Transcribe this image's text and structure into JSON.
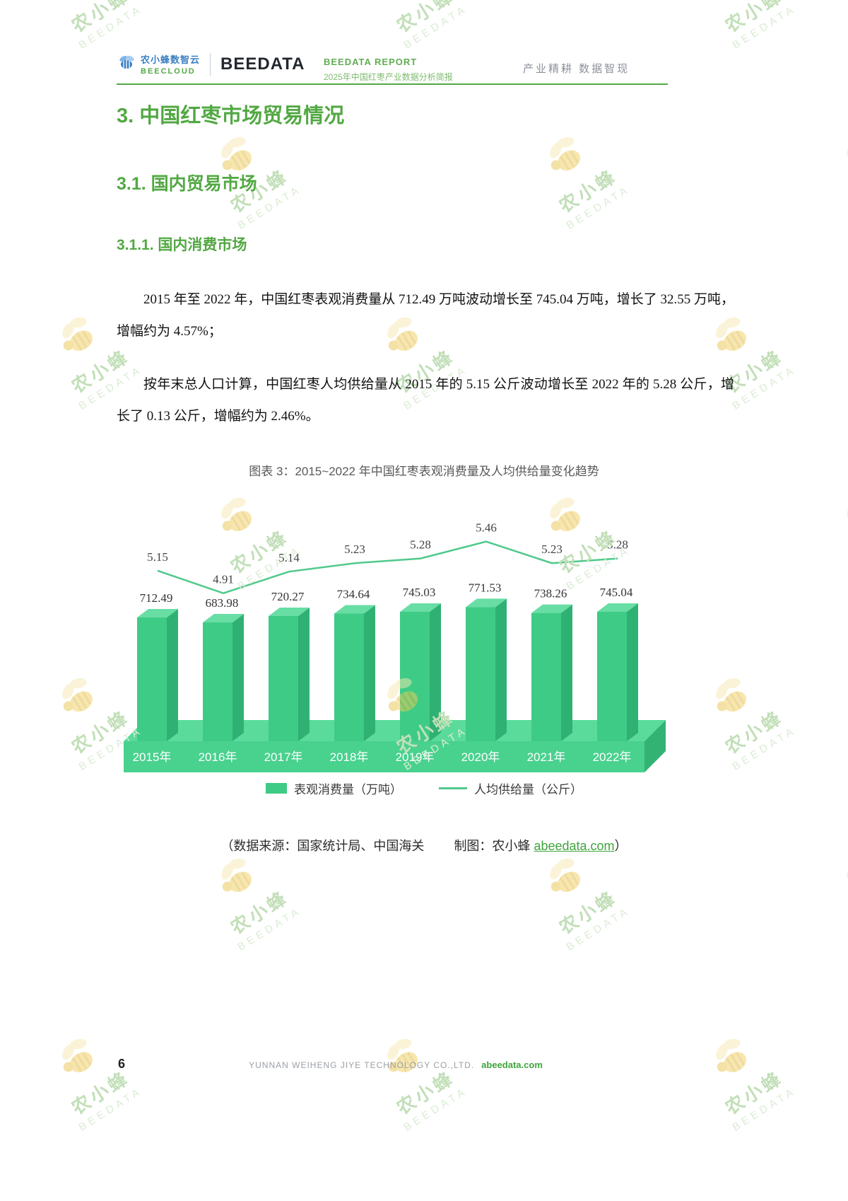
{
  "header": {
    "logo_cloud_cn": "农小蜂数智云",
    "logo_cloud_en": "BEECLOUD",
    "logo_beedata": "BEEDATA",
    "report_label": "BEEDATA REPORT",
    "report_subtitle": "2025年中国红枣产业数据分析简报",
    "slogan": "产业精耕 数据智现"
  },
  "headings": {
    "h1": "3. 中国红枣市场贸易情况",
    "h2": "3.1. 国内贸易市场",
    "h3": "3.1.1. 国内消费市场"
  },
  "paragraphs": {
    "p1": "2015 年至 2022 年，中国红枣表观消费量从 712.49 万吨波动增长至 745.04 万吨，增长了 32.55 万吨，增幅约为 4.57%；",
    "p2": "按年末总人口计算，中国红枣人均供给量从 2015 年的 5.15 公斤波动增长至 2022 年的 5.28 公斤，增长了 0.13 公斤，增幅约为 2.46%。"
  },
  "chart": {
    "caption": "图表 3：2015~2022 年中国红枣表观消费量及人均供给量变化趋势"
  },
  "chart_data": {
    "type": "bar",
    "title": "图表 3：2015~2022 年中国红枣表观消费量及人均供给量变化趋势",
    "categories": [
      "2015年",
      "2016年",
      "2017年",
      "2018年",
      "2019年",
      "2020年",
      "2021年",
      "2022年"
    ],
    "series": [
      {
        "name": "表观消费量（万吨）",
        "type": "bar",
        "values": [
          712.49,
          683.98,
          720.27,
          734.64,
          745.03,
          771.53,
          738.26,
          745.04
        ]
      },
      {
        "name": "人均供给量（公斤）",
        "type": "line",
        "values": [
          5.15,
          4.91,
          5.14,
          5.23,
          5.28,
          5.46,
          5.23,
          5.28
        ]
      }
    ],
    "legend_position": "bottom",
    "grid": false,
    "colors": {
      "bar_front": "#3ecb86",
      "bar_top": "#68dda4",
      "bar_side": "#2fb173",
      "platform_front": "#49d18e",
      "platform_top": "#5adb9c",
      "platform_side": "#32b374",
      "line": "#4fc98a"
    }
  },
  "source_note": {
    "part1": "（数据来源：国家统计局、中国海关",
    "part2": "制图：农小蜂 ",
    "link": "abeedata.com",
    "suffix": "）"
  },
  "footer": {
    "page_number": "6",
    "company": "YUNNAN WEIHENG JIYE TECHNOLOGY CO.,LTD.",
    "site": "abeedata.com"
  },
  "watermark": {
    "cn": "农小蜂",
    "en": "BEEDATA"
  },
  "accent_colors": {
    "heading_green": "#52a843",
    "link_green": "#3fa43c",
    "logo_blue": "#3b7fc2"
  }
}
